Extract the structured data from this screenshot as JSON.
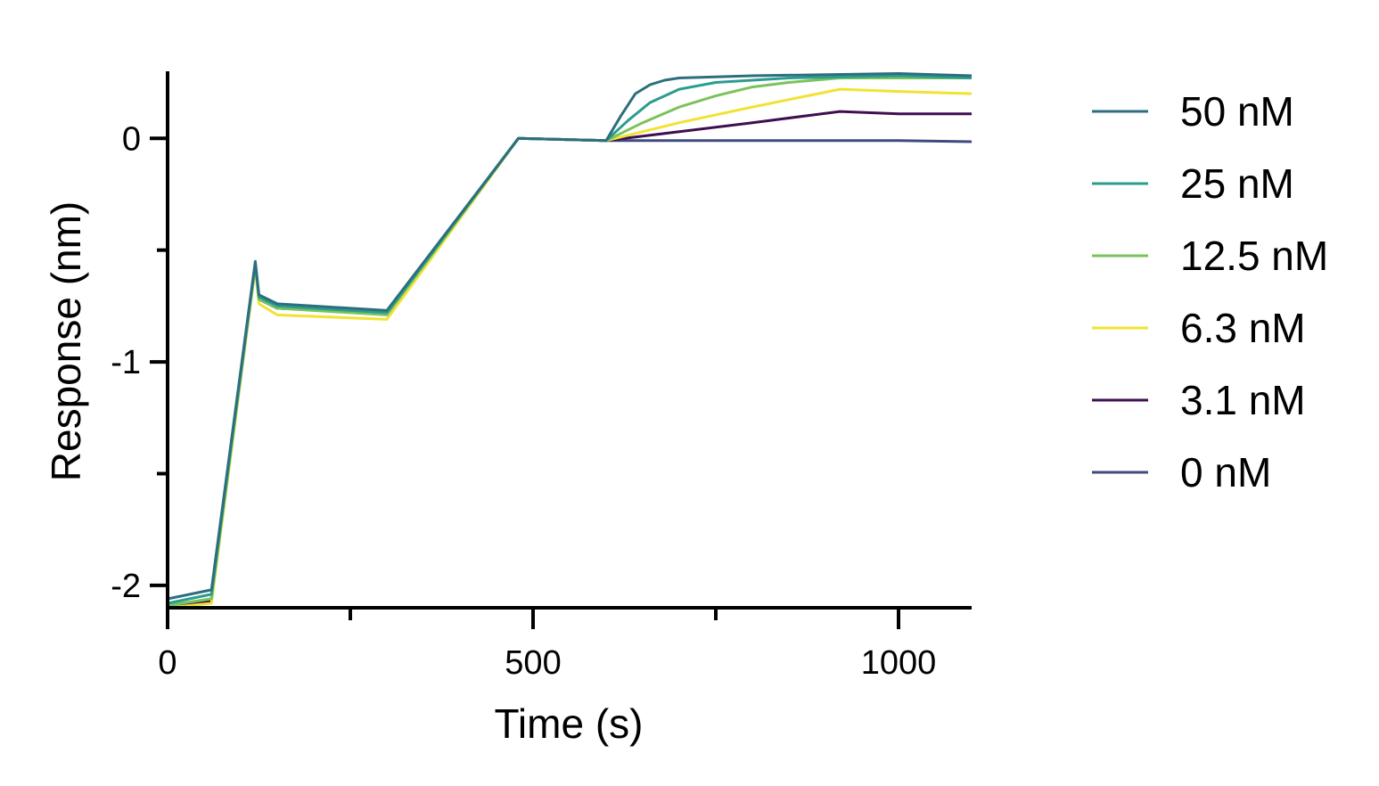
{
  "chart_data": {
    "type": "line",
    "xlabel": "Time (s)",
    "ylabel": "Response  (nm)",
    "xlim": [
      0,
      1100
    ],
    "ylim": [
      -2.1,
      0.3
    ],
    "x_ticks": [
      {
        "value": 0,
        "label": "0"
      },
      {
        "value": 250,
        "label": ""
      },
      {
        "value": 500,
        "label": "500"
      },
      {
        "value": 750,
        "label": ""
      },
      {
        "value": 1000,
        "label": "1000"
      }
    ],
    "y_ticks": [
      {
        "value": -2,
        "label": "-2"
      },
      {
        "value": -1.5,
        "label": ""
      },
      {
        "value": -1,
        "label": "-1"
      },
      {
        "value": -0.5,
        "label": ""
      },
      {
        "value": 0,
        "label": "0"
      }
    ],
    "legend_position": "right",
    "grid": false,
    "series": [
      {
        "name": "50 nM",
        "color": "#2d6e7e",
        "points": [
          [
            0,
            -2.06
          ],
          [
            60,
            -2.02
          ],
          [
            120,
            -0.55
          ],
          [
            125,
            -0.7
          ],
          [
            150,
            -0.74
          ],
          [
            300,
            -0.77
          ],
          [
            480,
            0.0
          ],
          [
            600,
            -0.01
          ],
          [
            620,
            0.1
          ],
          [
            640,
            0.2
          ],
          [
            660,
            0.24
          ],
          [
            680,
            0.26
          ],
          [
            700,
            0.27
          ],
          [
            800,
            0.28
          ],
          [
            1000,
            0.29
          ],
          [
            1100,
            0.28
          ]
        ]
      },
      {
        "name": "25 nM",
        "color": "#2a9d8f",
        "points": [
          [
            0,
            -2.08
          ],
          [
            60,
            -2.04
          ],
          [
            120,
            -0.56
          ],
          [
            125,
            -0.71
          ],
          [
            150,
            -0.75
          ],
          [
            300,
            -0.78
          ],
          [
            480,
            0.0
          ],
          [
            600,
            -0.01
          ],
          [
            630,
            0.08
          ],
          [
            660,
            0.16
          ],
          [
            700,
            0.22
          ],
          [
            750,
            0.25
          ],
          [
            850,
            0.27
          ],
          [
            1000,
            0.28
          ],
          [
            1100,
            0.27
          ]
        ]
      },
      {
        "name": "12.5 nM",
        "color": "#7ac35c",
        "points": [
          [
            0,
            -2.09
          ],
          [
            60,
            -2.06
          ],
          [
            120,
            -0.57
          ],
          [
            125,
            -0.72
          ],
          [
            150,
            -0.76
          ],
          [
            300,
            -0.79
          ],
          [
            480,
            0.0
          ],
          [
            600,
            -0.01
          ],
          [
            650,
            0.07
          ],
          [
            700,
            0.14
          ],
          [
            750,
            0.19
          ],
          [
            800,
            0.23
          ],
          [
            850,
            0.25
          ],
          [
            920,
            0.27
          ],
          [
            1000,
            0.27
          ],
          [
            1100,
            0.27
          ]
        ]
      },
      {
        "name": "6.3 nM",
        "color": "#f2e234",
        "points": [
          [
            0,
            -2.1
          ],
          [
            60,
            -2.08
          ],
          [
            120,
            -0.58
          ],
          [
            125,
            -0.74
          ],
          [
            150,
            -0.79
          ],
          [
            300,
            -0.81
          ],
          [
            480,
            0.0
          ],
          [
            600,
            -0.01
          ],
          [
            700,
            0.07
          ],
          [
            800,
            0.14
          ],
          [
            920,
            0.22
          ],
          [
            1000,
            0.21
          ],
          [
            1100,
            0.2
          ]
        ]
      },
      {
        "name": "3.1 nM",
        "color": "#3e0e4f",
        "points": [
          [
            0,
            -2.1
          ],
          [
            60,
            -2.07
          ],
          [
            120,
            -0.57
          ],
          [
            125,
            -0.72
          ],
          [
            150,
            -0.76
          ],
          [
            300,
            -0.78
          ],
          [
            480,
            0.0
          ],
          [
            600,
            -0.01
          ],
          [
            700,
            0.03
          ],
          [
            800,
            0.07
          ],
          [
            920,
            0.12
          ],
          [
            1000,
            0.11
          ],
          [
            1100,
            0.11
          ]
        ]
      },
      {
        "name": "0 nM",
        "color": "#3f4a7e",
        "points": [
          [
            0,
            -2.09
          ],
          [
            60,
            -2.06
          ],
          [
            120,
            -0.57
          ],
          [
            125,
            -0.72
          ],
          [
            150,
            -0.76
          ],
          [
            300,
            -0.78
          ],
          [
            480,
            0.0
          ],
          [
            600,
            -0.01
          ],
          [
            700,
            -0.01
          ],
          [
            850,
            -0.01
          ],
          [
            1000,
            -0.01
          ],
          [
            1100,
            -0.015
          ]
        ]
      }
    ]
  }
}
